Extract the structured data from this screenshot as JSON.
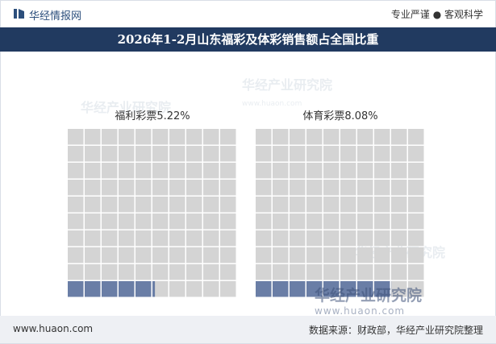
{
  "header": {
    "brand": "华经情报网",
    "slogan": "专业严谨 ● 客观科学"
  },
  "title": "2026年1-2月山东福彩及体彩销售额占全国比重",
  "footer": {
    "website": "www.huaon.com",
    "source": "数据来源：财政部，华经产业研究院整理"
  },
  "watermark": {
    "cn": "华经产业研究院",
    "en": "www.huaon.com"
  },
  "colors": {
    "title_bar": "#213a60",
    "filled_cell": "#6a7ea6",
    "empty_cell": "#d4d4d4",
    "brand": "#2c4f7c"
  },
  "chart_data": {
    "type": "waffle",
    "title": "2026年1-2月山东福彩及体彩销售额占全国比重",
    "grid": {
      "rows": 10,
      "cols": 10
    },
    "panels": [
      {
        "label": "福利彩票5.22%",
        "category": "福利彩票",
        "value": 5.22,
        "unit": "%"
      },
      {
        "label": "体育彩票8.08%",
        "category": "体育彩票",
        "value": 8.08,
        "unit": "%"
      }
    ]
  }
}
